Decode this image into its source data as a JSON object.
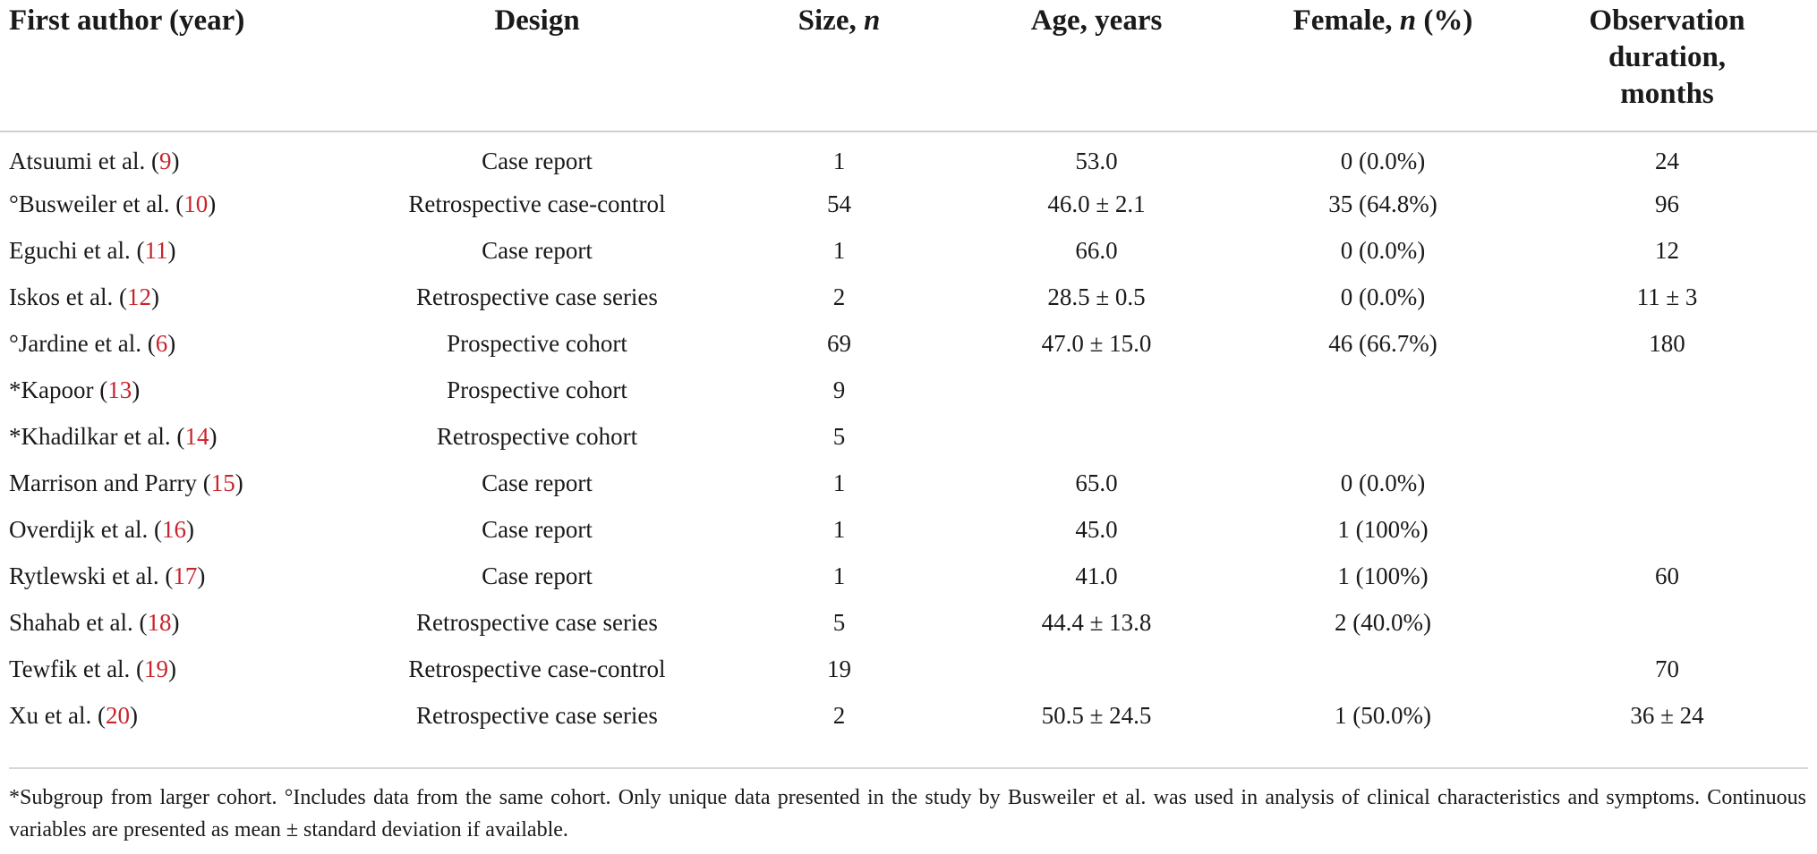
{
  "table": {
    "headers": {
      "author": "First author (year)",
      "design": "Design",
      "size_prefix": "Size, ",
      "size_italic": "n",
      "age": "Age, years",
      "female_prefix": "Female, ",
      "female_italic": "n",
      "female_suffix": " (%)",
      "obs_line1": "Observation",
      "obs_line2": "duration,",
      "obs_line3": "months"
    },
    "rows": [
      {
        "author": "Atsuumi et al. (",
        "ref": "9",
        "close": ")",
        "design": "Case report",
        "size": "1",
        "age": "53.0",
        "female": "0 (0.0%)",
        "obs": "24"
      },
      {
        "author": "°Busweiler et al. (",
        "ref": "10",
        "close": ")",
        "design": "Retrospective case-control",
        "size": "54",
        "age": "46.0 ± 2.1",
        "female": "35 (64.8%)",
        "obs": "96"
      },
      {
        "author": "Eguchi et al. (",
        "ref": "11",
        "close": ")",
        "design": "Case report",
        "size": "1",
        "age": "66.0",
        "female": "0 (0.0%)",
        "obs": "12"
      },
      {
        "author": "Iskos et al. (",
        "ref": "12",
        "close": ")",
        "design": "Retrospective case series",
        "size": "2",
        "age": "28.5 ± 0.5",
        "female": "0 (0.0%)",
        "obs": "11 ± 3"
      },
      {
        "author": "°Jardine et al. (",
        "ref": "6",
        "close": ")",
        "design": "Prospective cohort",
        "size": "69",
        "age": "47.0 ± 15.0",
        "female": "46 (66.7%)",
        "obs": "180"
      },
      {
        "author": "*Kapoor (",
        "ref": "13",
        "close": ")",
        "design": "Prospective cohort",
        "size": "9",
        "age": "",
        "female": "",
        "obs": ""
      },
      {
        "author": "*Khadilkar et al. (",
        "ref": "14",
        "close": ")",
        "design": "Retrospective cohort",
        "size": "5",
        "age": "",
        "female": "",
        "obs": ""
      },
      {
        "author": "Marrison and Parry (",
        "ref": "15",
        "close": ")",
        "design": "Case report",
        "size": "1",
        "age": "65.0",
        "female": "0 (0.0%)",
        "obs": ""
      },
      {
        "author": "Overdijk et al. (",
        "ref": "16",
        "close": ")",
        "design": "Case report",
        "size": "1",
        "age": "45.0",
        "female": "1 (100%)",
        "obs": ""
      },
      {
        "author": "Rytlewski et al. (",
        "ref": "17",
        "close": ")",
        "design": "Case report",
        "size": "1",
        "age": "41.0",
        "female": "1 (100%)",
        "obs": "60"
      },
      {
        "author": "Shahab et al. (",
        "ref": "18",
        "close": ")",
        "design": "Retrospective case series",
        "size": "5",
        "age": "44.4 ± 13.8",
        "female": "2 (40.0%)",
        "obs": ""
      },
      {
        "author": "Tewfik et al. (",
        "ref": "19",
        "close": ")",
        "design": "Retrospective case-control",
        "size": "19",
        "age": "",
        "female": "",
        "obs": "70"
      },
      {
        "author": "Xu et al. (",
        "ref": "20",
        "close": ")",
        "design": "Retrospective case series",
        "size": "2",
        "age": "50.5 ± 24.5",
        "female": "1 (50.0%)",
        "obs": "36 ± 24"
      }
    ]
  },
  "footnote": "*Subgroup from larger cohort. °Includes data from the same cohort. Only unique data presented in the study by Busweiler et al. was used in analysis of clinical characteristics and symptoms. Continuous variables are presented as mean ± standard deviation if available.",
  "colors": {
    "reference_link": "#c8242b",
    "rule": "#cfcfcf"
  }
}
